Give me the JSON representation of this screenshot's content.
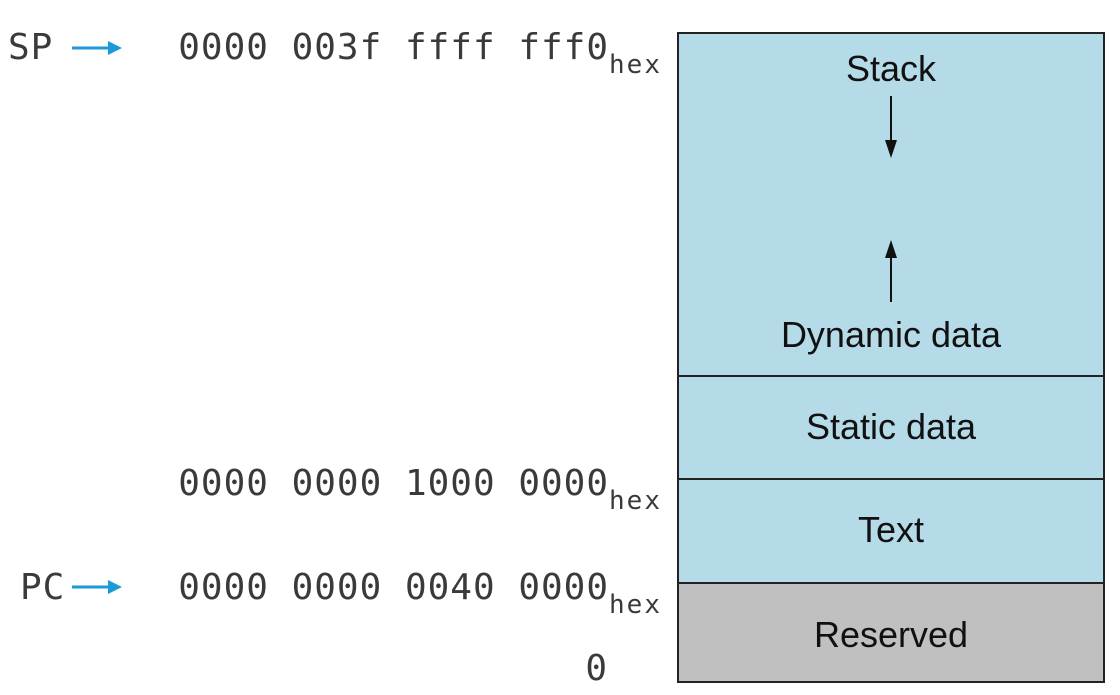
{
  "pointers": {
    "sp_label": "SP",
    "pc_label": "PC"
  },
  "addresses": {
    "stack_top": {
      "value": "0000 003f ffff fff0",
      "suffix": "hex"
    },
    "static_start": {
      "value": "0000 0000 1000 0000",
      "suffix": "hex"
    },
    "text_start": {
      "value": "0000 0000 0040 0000",
      "suffix": "hex"
    },
    "bottom": {
      "value": "0"
    }
  },
  "segments": {
    "stack": "Stack",
    "dynamic_data": "Dynamic data",
    "static_data": "Static data",
    "text": "Text",
    "reserved": "Reserved"
  },
  "colors": {
    "segment_fill": "#b5dae8",
    "reserved_fill": "#c0c0c0",
    "pointer_arrow": "#1a9ad6",
    "border": "#222222"
  }
}
